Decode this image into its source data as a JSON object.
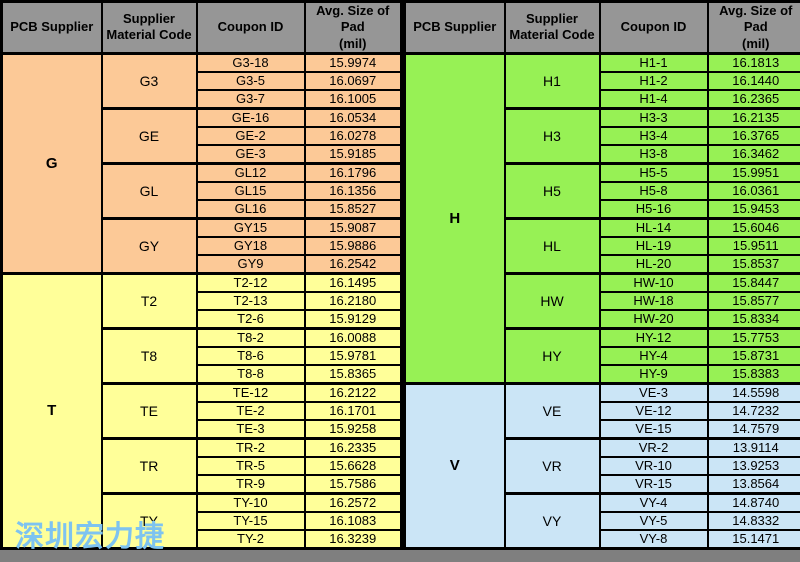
{
  "columns": [
    "PCB Supplier",
    "Supplier\nMaterial Code",
    "Coupon ID",
    "Avg. Size of Pad\n(mil)"
  ],
  "watermark": {
    "text": "深圳宏力捷"
  },
  "colors": {
    "header_bg": "#969696",
    "border": "#000000",
    "bottom_strip": "#7F7F7F",
    "supplier_g": "#FCC997",
    "supplier_t": "#FFFF99",
    "supplier_h": "#97F155",
    "supplier_v": "#CBE5F6",
    "watermark": "#7EC3F0"
  },
  "tables": [
    {
      "side": "left",
      "suppliers": [
        {
          "name": "G",
          "color_key": "supplier_g",
          "materials": [
            {
              "code": "G3",
              "coupons": [
                {
                  "id": "G3-18",
                  "avg": "15.9974"
                },
                {
                  "id": "G3-5",
                  "avg": "16.0697"
                },
                {
                  "id": "G3-7",
                  "avg": "16.1005"
                }
              ]
            },
            {
              "code": "GE",
              "coupons": [
                {
                  "id": "GE-16",
                  "avg": "16.0534"
                },
                {
                  "id": "GE-2",
                  "avg": "16.0278"
                },
                {
                  "id": "GE-3",
                  "avg": "15.9185"
                }
              ]
            },
            {
              "code": "GL",
              "coupons": [
                {
                  "id": "GL12",
                  "avg": "16.1796"
                },
                {
                  "id": "GL15",
                  "avg": "16.1356"
                },
                {
                  "id": "GL16",
                  "avg": "15.8527"
                }
              ]
            },
            {
              "code": "GY",
              "coupons": [
                {
                  "id": "GY15",
                  "avg": "15.9087"
                },
                {
                  "id": "GY18",
                  "avg": "15.9886"
                },
                {
                  "id": "GY9",
                  "avg": "16.2542"
                }
              ]
            }
          ]
        },
        {
          "name": "T",
          "color_key": "supplier_t",
          "materials": [
            {
              "code": "T2",
              "coupons": [
                {
                  "id": "T2-12",
                  "avg": "16.1495"
                },
                {
                  "id": "T2-13",
                  "avg": "16.2180"
                },
                {
                  "id": "T2-6",
                  "avg": "15.9129"
                }
              ]
            },
            {
              "code": "T8",
              "coupons": [
                {
                  "id": "T8-2",
                  "avg": "16.0088"
                },
                {
                  "id": "T8-6",
                  "avg": "15.9781"
                },
                {
                  "id": "T8-8",
                  "avg": "15.8365"
                }
              ]
            },
            {
              "code": "TE",
              "coupons": [
                {
                  "id": "TE-12",
                  "avg": "16.2122"
                },
                {
                  "id": "TE-2",
                  "avg": "16.1701"
                },
                {
                  "id": "TE-3",
                  "avg": "15.9258"
                }
              ]
            },
            {
              "code": "TR",
              "coupons": [
                {
                  "id": "TR-2",
                  "avg": "16.2335"
                },
                {
                  "id": "TR-5",
                  "avg": "15.6628"
                },
                {
                  "id": "TR-9",
                  "avg": "15.7586"
                }
              ]
            },
            {
              "code": "TY",
              "coupons": [
                {
                  "id": "TY-10",
                  "avg": "16.2572"
                },
                {
                  "id": "TY-15",
                  "avg": "16.1083"
                },
                {
                  "id": "TY-2",
                  "avg": "16.3239"
                }
              ]
            }
          ]
        }
      ]
    },
    {
      "side": "right",
      "suppliers": [
        {
          "name": "H",
          "color_key": "supplier_h",
          "materials": [
            {
              "code": "H1",
              "coupons": [
                {
                  "id": "H1-1",
                  "avg": "16.1813"
                },
                {
                  "id": "H1-2",
                  "avg": "16.1440"
                },
                {
                  "id": "H1-4",
                  "avg": "16.2365"
                }
              ]
            },
            {
              "code": "H3",
              "coupons": [
                {
                  "id": "H3-3",
                  "avg": "16.2135"
                },
                {
                  "id": "H3-4",
                  "avg": "16.3765"
                },
                {
                  "id": "H3-8",
                  "avg": "16.3462"
                }
              ]
            },
            {
              "code": "H5",
              "coupons": [
                {
                  "id": "H5-5",
                  "avg": "15.9951"
                },
                {
                  "id": "H5-8",
                  "avg": "16.0361"
                },
                {
                  "id": "H5-16",
                  "avg": "15.9453"
                }
              ]
            },
            {
              "code": "HL",
              "coupons": [
                {
                  "id": "HL-14",
                  "avg": "15.6046"
                },
                {
                  "id": "HL-19",
                  "avg": "15.9511"
                },
                {
                  "id": "HL-20",
                  "avg": "15.8537"
                }
              ]
            },
            {
              "code": "HW",
              "coupons": [
                {
                  "id": "HW-10",
                  "avg": "15.8447"
                },
                {
                  "id": "HW-18",
                  "avg": "15.8577"
                },
                {
                  "id": "HW-20",
                  "avg": "15.8334"
                }
              ]
            },
            {
              "code": "HY",
              "coupons": [
                {
                  "id": "HY-12",
                  "avg": "15.7753"
                },
                {
                  "id": "HY-4",
                  "avg": "15.8731"
                },
                {
                  "id": "HY-9",
                  "avg": "15.8383"
                }
              ]
            }
          ]
        },
        {
          "name": "V",
          "color_key": "supplier_v",
          "materials": [
            {
              "code": "VE",
              "coupons": [
                {
                  "id": "VE-3",
                  "avg": "14.5598"
                },
                {
                  "id": "VE-12",
                  "avg": "14.7232"
                },
                {
                  "id": "VE-15",
                  "avg": "14.7579"
                }
              ]
            },
            {
              "code": "VR",
              "coupons": [
                {
                  "id": "VR-2",
                  "avg": "13.9114"
                },
                {
                  "id": "VR-10",
                  "avg": "13.9253"
                },
                {
                  "id": "VR-15",
                  "avg": "13.8564"
                }
              ]
            },
            {
              "code": "VY",
              "coupons": [
                {
                  "id": "VY-4",
                  "avg": "14.8740"
                },
                {
                  "id": "VY-5",
                  "avg": "14.8332"
                },
                {
                  "id": "VY-8",
                  "avg": "15.1471"
                }
              ]
            }
          ]
        }
      ]
    }
  ]
}
